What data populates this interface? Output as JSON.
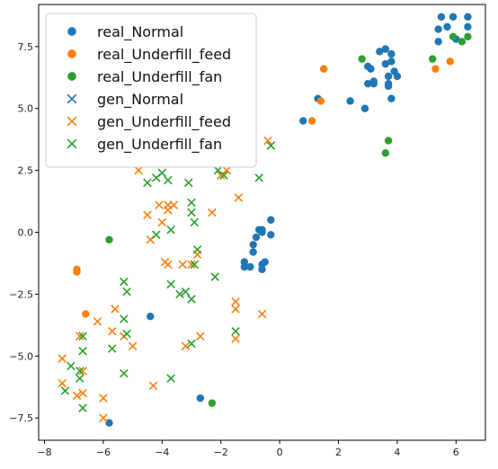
{
  "chart_data": {
    "type": "scatter",
    "title": "",
    "xlabel": "",
    "ylabel": "",
    "xlim": [
      -8.2,
      7.0
    ],
    "ylim": [
      -8.4,
      9.2
    ],
    "x_ticks": [
      -8,
      -6,
      -4,
      -2,
      0,
      2,
      4,
      6
    ],
    "y_ticks": [
      -7.5,
      -5.0,
      -2.5,
      0.0,
      2.5,
      5.0,
      7.5
    ],
    "x_tick_labels": [
      "−8",
      "−6",
      "−4",
      "−2",
      "0",
      "2",
      "4",
      "6"
    ],
    "y_tick_labels": [
      "−7.5",
      "−5.0",
      "−2.5",
      "0.0",
      "2.5",
      "5.0",
      "7.5"
    ],
    "grid": false,
    "legend_position": "top-left",
    "series": [
      {
        "name": "real_Normal",
        "marker": "circle",
        "color": "#1f77b4",
        "points": [
          [
            5.5,
            8.7
          ],
          [
            5.9,
            8.7
          ],
          [
            6.4,
            8.7
          ],
          [
            5.4,
            8.2
          ],
          [
            6.4,
            8.3
          ],
          [
            5.7,
            8.3
          ],
          [
            5.4,
            7.7
          ],
          [
            6.0,
            7.8
          ],
          [
            3.6,
            7.4
          ],
          [
            3.4,
            7.3
          ],
          [
            3.8,
            7.2
          ],
          [
            3.8,
            6.9
          ],
          [
            3.0,
            6.7
          ],
          [
            3.1,
            6.6
          ],
          [
            3.6,
            6.8
          ],
          [
            3.9,
            6.5
          ],
          [
            3.7,
            6.3
          ],
          [
            4.0,
            6.3
          ],
          [
            3.2,
            6.1
          ],
          [
            3.0,
            6.0
          ],
          [
            3.7,
            6.0
          ],
          [
            3.2,
            6.0
          ],
          [
            3.7,
            5.9
          ],
          [
            3.8,
            5.4
          ],
          [
            2.4,
            5.3
          ],
          [
            2.9,
            5.0
          ],
          [
            1.3,
            5.4
          ],
          [
            0.8,
            4.5
          ],
          [
            -0.3,
            0.5
          ],
          [
            -0.7,
            0.1
          ],
          [
            -0.6,
            0.1
          ],
          [
            -0.6,
            0.0
          ],
          [
            -0.3,
            -0.1
          ],
          [
            -0.8,
            -0.2
          ],
          [
            -0.9,
            -0.5
          ],
          [
            -0.9,
            -0.8
          ],
          [
            -1.2,
            -1.2
          ],
          [
            -0.6,
            -1.3
          ],
          [
            -0.5,
            -1.2
          ],
          [
            -1.0,
            -1.4
          ],
          [
            -0.6,
            -1.5
          ],
          [
            -1.2,
            -1.4
          ],
          [
            -4.4,
            -3.4
          ],
          [
            -2.7,
            -6.7
          ],
          [
            -5.8,
            -7.7
          ]
        ]
      },
      {
        "name": "real_Underfill_feed",
        "marker": "circle",
        "color": "#ff7f0e",
        "points": [
          [
            5.8,
            6.9
          ],
          [
            5.3,
            6.6
          ],
          [
            1.5,
            6.6
          ],
          [
            1.4,
            5.3
          ],
          [
            1.1,
            4.5
          ],
          [
            -6.9,
            -1.5
          ],
          [
            -6.9,
            -1.6
          ],
          [
            -6.6,
            -3.3
          ]
        ]
      },
      {
        "name": "real_Underfill_fan",
        "marker": "circle",
        "color": "#2ca02c",
        "points": [
          [
            6.4,
            7.9
          ],
          [
            5.9,
            7.9
          ],
          [
            6.2,
            7.7
          ],
          [
            5.2,
            7.0
          ],
          [
            2.8,
            7.0
          ],
          [
            3.7,
            3.7
          ],
          [
            3.6,
            3.2
          ],
          [
            -5.8,
            -0.3
          ],
          [
            -2.3,
            -6.9
          ]
        ]
      },
      {
        "name": "gen_Normal",
        "marker": "x",
        "color": "#1f77b4",
        "points": []
      },
      {
        "name": "gen_Underfill_feed",
        "marker": "x",
        "color": "#ff7f0e",
        "points": [
          [
            -0.4,
            3.7
          ],
          [
            -1.8,
            2.5
          ],
          [
            -2.0,
            2.3
          ],
          [
            -4.8,
            2.5
          ],
          [
            -1.4,
            1.4
          ],
          [
            -2.3,
            0.8
          ],
          [
            -3.6,
            1.1
          ],
          [
            -3.8,
            1.1
          ],
          [
            -4.1,
            1.1
          ],
          [
            -3.8,
            0.9
          ],
          [
            -4.5,
            0.7
          ],
          [
            -4.0,
            0.4
          ],
          [
            -4.4,
            -0.3
          ],
          [
            -2.8,
            -0.9
          ],
          [
            -3.9,
            -1.2
          ],
          [
            -3.3,
            -1.3
          ],
          [
            -3.8,
            -1.3
          ],
          [
            -3.0,
            -1.3
          ],
          [
            -6.2,
            -3.6
          ],
          [
            -1.5,
            -2.8
          ],
          [
            -1.5,
            -3.1
          ],
          [
            -0.6,
            -3.3
          ],
          [
            -5.6,
            -3.1
          ],
          [
            -5.7,
            -4.0
          ],
          [
            -5.3,
            -4.2
          ],
          [
            -6.8,
            -4.2
          ],
          [
            -2.7,
            -4.2
          ],
          [
            -5.0,
            -4.6
          ],
          [
            -3.2,
            -4.6
          ],
          [
            -1.5,
            -4.3
          ],
          [
            -7.4,
            -5.1
          ],
          [
            -6.7,
            -5.6
          ],
          [
            -7.4,
            -6.1
          ],
          [
            -6.9,
            -6.6
          ],
          [
            -6.7,
            -6.5
          ],
          [
            -6.0,
            -6.7
          ],
          [
            -4.3,
            -6.2
          ],
          [
            -6.0,
            -7.5
          ]
        ]
      },
      {
        "name": "gen_Underfill_fan",
        "marker": "x",
        "color": "#2ca02c",
        "points": [
          [
            -0.3,
            3.5
          ],
          [
            -0.7,
            2.2
          ],
          [
            -2.1,
            2.5
          ],
          [
            -1.9,
            2.3
          ],
          [
            -4.0,
            2.4
          ],
          [
            -3.8,
            2.1
          ],
          [
            -4.5,
            2.0
          ],
          [
            -4.2,
            2.2
          ],
          [
            -3.1,
            2.0
          ],
          [
            -3.0,
            1.2
          ],
          [
            -3.0,
            0.8
          ],
          [
            -2.9,
            0.4
          ],
          [
            -3.7,
            0.1
          ],
          [
            -4.2,
            -0.1
          ],
          [
            -2.8,
            -0.7
          ],
          [
            -2.9,
            -1.3
          ],
          [
            -2.2,
            -1.8
          ],
          [
            -3.7,
            -2.1
          ],
          [
            -3.2,
            -2.4
          ],
          [
            -3.4,
            -2.5
          ],
          [
            -3.0,
            -2.7
          ],
          [
            -5.3,
            -2.0
          ],
          [
            -5.2,
            -2.4
          ],
          [
            -5.3,
            -3.5
          ],
          [
            -5.2,
            -4.1
          ],
          [
            -5.7,
            -4.7
          ],
          [
            -6.7,
            -4.2
          ],
          [
            -6.7,
            -4.8
          ],
          [
            -3.0,
            -4.5
          ],
          [
            -1.5,
            -4.0
          ],
          [
            -7.1,
            -5.4
          ],
          [
            -6.8,
            -5.6
          ],
          [
            -6.8,
            -5.9
          ],
          [
            -5.3,
            -5.7
          ],
          [
            -3.7,
            -5.9
          ],
          [
            -7.3,
            -6.4
          ],
          [
            -6.7,
            -7.1
          ]
        ]
      }
    ]
  }
}
